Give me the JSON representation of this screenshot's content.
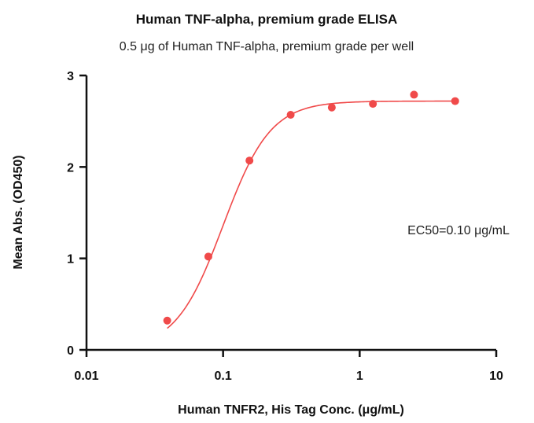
{
  "chart_data": {
    "type": "scatter",
    "title": "Human TNF-alpha, premium grade ELISA",
    "subtitle": "0.5 μg of Human TNF-alpha, premium grade per well",
    "xlabel": "Human TNFR2, His Tag Conc. (μg/mL)",
    "ylabel": "Mean Abs. (OD450)",
    "x_scale": "log",
    "xlim": [
      0.01,
      10
    ],
    "ylim": [
      0,
      3
    ],
    "x_ticks": [
      {
        "value": 0.01,
        "label": "0.01"
      },
      {
        "value": 0.1,
        "label": "0.1"
      },
      {
        "value": 1,
        "label": "1"
      },
      {
        "value": 10,
        "label": "10"
      }
    ],
    "y_ticks": [
      {
        "value": 0,
        "label": "0"
      },
      {
        "value": 1,
        "label": "1"
      },
      {
        "value": 2,
        "label": "2"
      },
      {
        "value": 3,
        "label": "3"
      }
    ],
    "grid": false,
    "color": "#f04a4a",
    "points": [
      {
        "x": 0.039,
        "y": 0.32
      },
      {
        "x": 0.078,
        "y": 1.02
      },
      {
        "x": 0.156,
        "y": 2.07
      },
      {
        "x": 0.3125,
        "y": 2.57
      },
      {
        "x": 0.625,
        "y": 2.65
      },
      {
        "x": 1.25,
        "y": 2.69
      },
      {
        "x": 2.5,
        "y": 2.79
      },
      {
        "x": 5,
        "y": 2.72
      }
    ],
    "fit": {
      "model": "4PL",
      "bottom": 0.0,
      "top": 2.72,
      "ec50": 0.1,
      "hill": 2.5
    },
    "annotation": "EC50=0.10 μg/mL"
  }
}
